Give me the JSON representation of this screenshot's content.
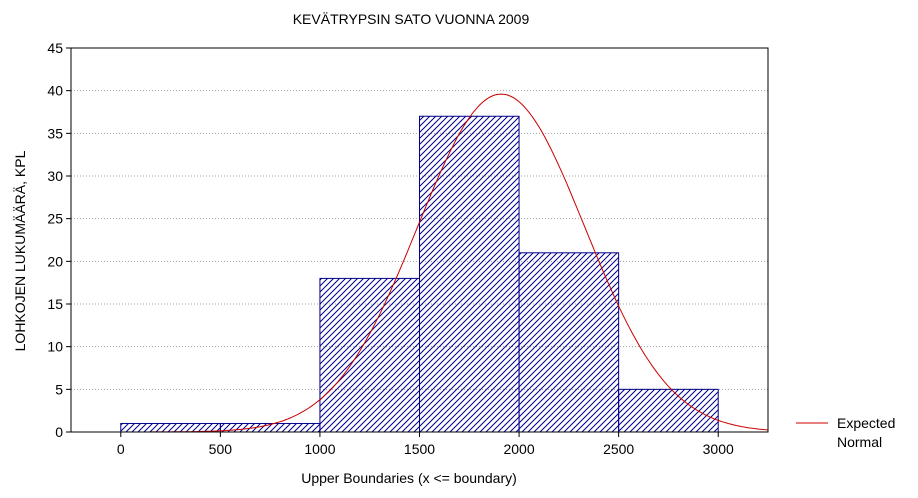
{
  "chart_data": {
    "type": "bar",
    "title": "KEVÄTRYPSIN SATO VUONNA 2009",
    "xlabel": "Upper Boundaries (x <= boundary)",
    "ylabel": "LOHKOJEN LUKUMÄÄRÄ, KPL",
    "xlim": [
      -250,
      3250
    ],
    "ylim": [
      0,
      45
    ],
    "x_ticks": [
      "0",
      "500",
      "1000",
      "1500",
      "2000",
      "2500",
      "3000"
    ],
    "y_ticks": [
      "0",
      "5",
      "10",
      "15",
      "20",
      "25",
      "30",
      "35",
      "40",
      "45"
    ],
    "grid": true,
    "bins": [
      {
        "lower": 0,
        "upper": 500,
        "count": 1
      },
      {
        "lower": 500,
        "upper": 1000,
        "count": 1
      },
      {
        "lower": 1000,
        "upper": 1500,
        "count": 18
      },
      {
        "lower": 1500,
        "upper": 2000,
        "count": 37
      },
      {
        "lower": 2000,
        "upper": 2500,
        "count": 21
      },
      {
        "lower": 2500,
        "upper": 3000,
        "count": 5
      }
    ],
    "series": [
      {
        "name": "Expected Normal",
        "type": "line",
        "mean": 1910,
        "peak": 39.6,
        "sd": 420
      }
    ],
    "legend": {
      "position": "right",
      "lines": [
        "Expected",
        "Normal"
      ]
    },
    "colors": {
      "bar": "#00008b",
      "curve": "#cc0000",
      "grid": "#a0a0a0"
    }
  }
}
